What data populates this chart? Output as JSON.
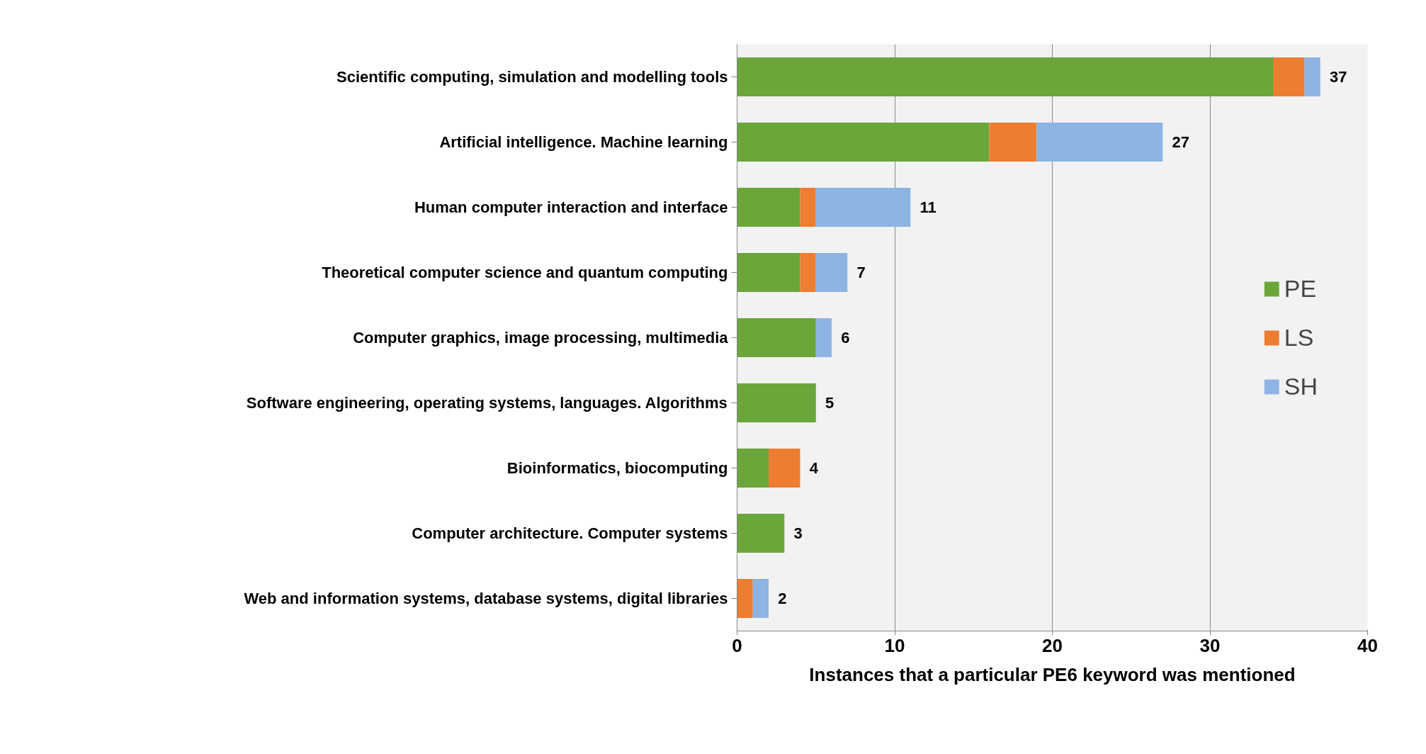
{
  "chart_data": {
    "type": "bar",
    "orientation": "horizontal",
    "stacked": true,
    "xlabel": "Instances that a particular PE6 keyword was mentioned",
    "categories": [
      "Scientific computing, simulation and modelling tools",
      "Artificial intelligence. Machine learning",
      "Human computer interaction and interface",
      "Theoretical computer science and quantum computing",
      "Computer graphics, image processing, multimedia",
      "Software engineering, operating systems, languages. Algorithms",
      "Bioinformatics, biocomputing",
      "Computer architecture. Computer systems",
      "Web and information systems, database systems, digital libraries"
    ],
    "series": [
      {
        "name": "PE",
        "color": "#6aa63a",
        "values": [
          34,
          16,
          4,
          4,
          5,
          5,
          2,
          3,
          0
        ]
      },
      {
        "name": "LS",
        "color": "#ed7d31",
        "values": [
          2,
          3,
          1,
          1,
          0,
          0,
          2,
          0,
          1
        ]
      },
      {
        "name": "SH",
        "color": "#8db4e2",
        "values": [
          1,
          8,
          6,
          2,
          1,
          0,
          0,
          0,
          1
        ]
      }
    ],
    "totals": [
      "37",
      "27",
      "11",
      "7",
      "6",
      "5",
      "4",
      "3",
      "2"
    ],
    "xlim": [
      0,
      40
    ],
    "xticks": [
      0,
      10,
      20,
      30,
      40
    ],
    "grid": "x",
    "legend": "right"
  }
}
